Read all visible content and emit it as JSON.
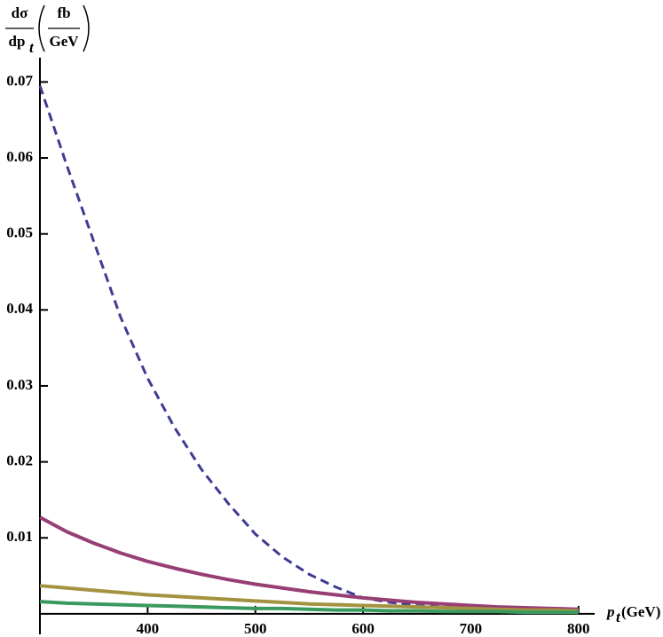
{
  "chart_data": {
    "type": "line",
    "ylabel": {
      "numerator": "dσ",
      "denominator": "dp",
      "denominator_sub": "t",
      "unit_numerator": "fb",
      "unit_denominator": "GeV"
    },
    "xlabel": {
      "main": "p",
      "sub": "t",
      "unit": "(GeV)"
    },
    "x": [
      300,
      325,
      350,
      375,
      400,
      425,
      450,
      475,
      500,
      525,
      550,
      575,
      600,
      625,
      650,
      675,
      700,
      725,
      750,
      775,
      800
    ],
    "series": [
      {
        "color": "#3e3b93",
        "dashed": true,
        "values": [
          0.0695,
          0.059,
          0.049,
          0.039,
          0.031,
          0.0245,
          0.019,
          0.0145,
          0.0105,
          0.0075,
          0.0052,
          0.0035,
          0.0021,
          0.0015,
          0.0011,
          0.0009,
          0.0007,
          0.0006,
          0.0005,
          0.0004,
          0.0003
        ]
      },
      {
        "color": "#973f74",
        "dashed": false,
        "values": [
          0.0127,
          0.0108,
          0.0093,
          0.008,
          0.0069,
          0.006,
          0.0052,
          0.0045,
          0.0039,
          0.0034,
          0.0029,
          0.0025,
          0.0021,
          0.0018,
          0.0015,
          0.0013,
          0.0011,
          0.0009,
          0.0008,
          0.0007,
          0.0006
        ]
      },
      {
        "color": "#a39341",
        "dashed": false,
        "values": [
          0.0037,
          0.0034,
          0.0031,
          0.0028,
          0.0025,
          0.0023,
          0.0021,
          0.0019,
          0.0017,
          0.0015,
          0.0013,
          0.0012,
          0.0011,
          0.001,
          0.0009,
          0.0008,
          0.0007,
          0.0006,
          0.0005,
          0.0005,
          0.0004
        ]
      },
      {
        "color": "#3a9a5e",
        "dashed": false,
        "values": [
          0.0016,
          0.0014,
          0.0013,
          0.0012,
          0.0011,
          0.001,
          0.0009,
          0.0008,
          0.0007,
          0.0007,
          0.0006,
          0.0005,
          0.0005,
          0.0004,
          0.0004,
          0.0003,
          0.0003,
          0.0003,
          0.0002,
          0.0002,
          0.0002
        ]
      }
    ],
    "xlim": [
      300,
      815
    ],
    "xticks": [
      400,
      500,
      600,
      700,
      800
    ],
    "ylim": [
      -0.0027,
      0.0732
    ],
    "yticks": [
      0.01,
      0.02,
      0.03,
      0.04,
      0.05,
      0.06,
      0.07
    ],
    "grid": false
  }
}
